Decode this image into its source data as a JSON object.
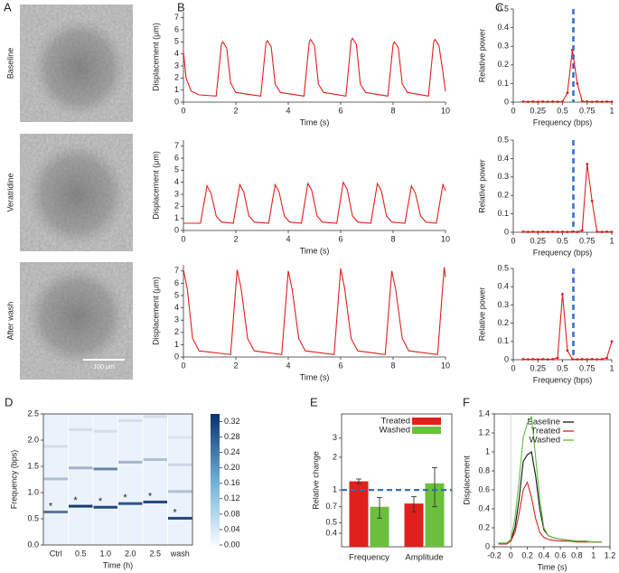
{
  "images": {
    "panel": "A",
    "labels": [
      "Baseline",
      "Veratridine",
      "After wash"
    ],
    "scale_bar": "100 μm"
  },
  "chart_data": [
    {
      "type": "line",
      "panel": "B",
      "xlabel": "Time (s)",
      "ylabel": "Displacement (μm)",
      "color": "#e0201c",
      "x": [
        0,
        0.1,
        0.3,
        0.6,
        1.25,
        1.45,
        1.5,
        1.65,
        1.8,
        2.0,
        2.95,
        3.15,
        3.2,
        3.35,
        3.5,
        3.7,
        4.6,
        4.8,
        4.85,
        5.0,
        5.15,
        5.35,
        6.2,
        6.4,
        6.45,
        6.6,
        6.75,
        6.95,
        7.8,
        8.0,
        8.05,
        8.2,
        8.35,
        8.55,
        9.35,
        9.55,
        9.6,
        9.75,
        9.9,
        10
      ],
      "values": [
        4.2,
        2.0,
        0.9,
        0.6,
        0.5,
        4.8,
        5.0,
        4.5,
        1.6,
        0.8,
        0.5,
        4.9,
        5.1,
        4.6,
        1.5,
        0.8,
        0.5,
        5.0,
        5.2,
        4.7,
        1.5,
        0.8,
        0.5,
        5.1,
        5.3,
        4.8,
        1.5,
        0.8,
        0.5,
        4.8,
        5.0,
        4.5,
        1.5,
        0.8,
        0.5,
        5.0,
        5.2,
        4.7,
        2.5,
        0.9
      ],
      "xlim": [
        0,
        10
      ],
      "xticks": [
        0,
        2,
        4,
        6,
        8,
        10
      ],
      "ylim": [
        0,
        7.5
      ],
      "yticks": [
        0,
        1,
        2,
        3,
        4,
        5,
        6,
        7
      ]
    },
    {
      "type": "line",
      "xlabel": "Time (s)",
      "ylabel": "Displacement (μm)",
      "color": "#e0201c",
      "x": [
        0,
        0.65,
        0.9,
        1.05,
        1.25,
        1.45,
        1.9,
        2.15,
        2.3,
        2.5,
        2.7,
        3.25,
        3.5,
        3.65,
        3.85,
        4.05,
        4.5,
        4.75,
        4.9,
        5.1,
        5.3,
        5.85,
        6.1,
        6.25,
        6.45,
        6.65,
        7.15,
        7.4,
        7.55,
        7.75,
        7.95,
        8.45,
        8.7,
        8.85,
        9.05,
        9.25,
        9.65,
        9.9,
        10
      ],
      "values": [
        0.6,
        0.6,
        3.7,
        3.1,
        1.2,
        0.7,
        0.6,
        3.8,
        3.2,
        1.2,
        0.7,
        0.6,
        3.8,
        3.2,
        1.2,
        0.7,
        0.6,
        3.9,
        3.3,
        1.2,
        0.7,
        0.6,
        4.0,
        3.4,
        1.2,
        0.7,
        0.6,
        3.9,
        3.3,
        1.2,
        0.7,
        0.6,
        3.7,
        3.1,
        1.2,
        0.7,
        0.6,
        3.8,
        3.3
      ],
      "xlim": [
        0,
        10
      ],
      "xticks": [
        0,
        2,
        4,
        6,
        8,
        10
      ],
      "ylim": [
        0,
        7.5
      ],
      "yticks": [
        0,
        1,
        2,
        3,
        4,
        5,
        6,
        7
      ]
    },
    {
      "type": "line",
      "xlabel": "Time (s)",
      "ylabel": "Displacement  (μm)",
      "color": "#e0201c",
      "x": [
        0,
        0.15,
        0.35,
        0.6,
        1.8,
        2.05,
        2.2,
        2.45,
        2.7,
        3.75,
        4.0,
        4.15,
        4.4,
        4.65,
        5.75,
        6.0,
        6.15,
        6.4,
        6.65,
        7.7,
        7.95,
        8.1,
        8.35,
        8.6,
        9.7,
        9.95,
        10
      ],
      "values": [
        7.1,
        5.5,
        1.5,
        0.5,
        0.2,
        7.1,
        5.6,
        1.5,
        0.5,
        0.2,
        7.0,
        5.5,
        1.5,
        0.5,
        0.2,
        7.2,
        5.6,
        1.5,
        0.5,
        0.2,
        7.0,
        5.5,
        1.5,
        0.5,
        0.2,
        7.3,
        6.5
      ],
      "xlim": [
        0,
        10
      ],
      "xticks": [
        0,
        2,
        4,
        6,
        8,
        10
      ],
      "ylim": [
        0,
        7.5
      ],
      "yticks": [
        0,
        1,
        2,
        3,
        4,
        5,
        6,
        7
      ]
    },
    {
      "type": "line",
      "panel": "C",
      "markers": true,
      "xlabel": "Frequency (bps)",
      "ylabel": "Relative power",
      "color": "#e0201c",
      "vline": 0.61,
      "vline_color": "#2f6fc4",
      "x": [
        0.1,
        0.15,
        0.2,
        0.25,
        0.3,
        0.35,
        0.4,
        0.45,
        0.5,
        0.55,
        0.6,
        0.65,
        0.7,
        0.75,
        0.8,
        0.85,
        0.9,
        0.95,
        1.0
      ],
      "values": [
        0.003,
        0.002,
        0.003,
        0.002,
        0.003,
        0.002,
        0.003,
        0.002,
        0.003,
        0.05,
        0.28,
        0.1,
        0.004,
        0.003,
        0.002,
        0.003,
        0.002,
        0.003,
        0.002
      ],
      "xlim": [
        0,
        1
      ],
      "xticks": [
        0,
        0.25,
        0.5,
        0.75,
        1
      ],
      "ylim": [
        0,
        0.5
      ],
      "yticks": [
        0,
        0.1,
        0.2,
        0.3,
        0.4,
        0.5
      ]
    },
    {
      "type": "line",
      "markers": true,
      "xlabel": "Frequency (bps)",
      "ylabel": "Relative power",
      "color": "#e0201c",
      "vline": 0.61,
      "vline_color": "#2f6fc4",
      "x": [
        0.1,
        0.15,
        0.2,
        0.25,
        0.3,
        0.35,
        0.4,
        0.45,
        0.5,
        0.55,
        0.6,
        0.65,
        0.7,
        0.75,
        0.8,
        0.85,
        0.9,
        0.95,
        1.0
      ],
      "values": [
        0.003,
        0.002,
        0.003,
        0.002,
        0.003,
        0.002,
        0.003,
        0.002,
        0.003,
        0.002,
        0.003,
        0.002,
        0.01,
        0.37,
        0.17,
        0.003,
        0.002,
        0.003,
        0.002
      ],
      "xlim": [
        0,
        1
      ],
      "xticks": [
        0,
        0.25,
        0.5,
        0.75,
        1
      ],
      "ylim": [
        0,
        0.5
      ],
      "yticks": [
        0,
        0.1,
        0.2,
        0.3,
        0.4,
        0.5
      ]
    },
    {
      "type": "line",
      "markers": true,
      "xlabel": "Frequency (bps)",
      "ylabel": "Relative power",
      "color": "#e0201c",
      "vline": 0.61,
      "vline_color": "#2f6fc4",
      "x": [
        0.1,
        0.15,
        0.2,
        0.25,
        0.3,
        0.35,
        0.4,
        0.45,
        0.5,
        0.55,
        0.6,
        0.65,
        0.7,
        0.75,
        0.8,
        0.85,
        0.9,
        0.95,
        1.0
      ],
      "values": [
        0.003,
        0.002,
        0.003,
        0.002,
        0.003,
        0.002,
        0.003,
        0.01,
        0.36,
        0.05,
        0.003,
        0.002,
        0.003,
        0.002,
        0.003,
        0.002,
        0.003,
        0.01,
        0.1
      ],
      "xlim": [
        0,
        1
      ],
      "xticks": [
        0,
        0.25,
        0.5,
        0.75,
        1
      ],
      "ylim": [
        0,
        0.5
      ],
      "yticks": [
        0,
        0.1,
        0.2,
        0.3,
        0.4,
        0.5
      ]
    },
    {
      "type": "heatmap",
      "panel": "D",
      "xlabel": "Time (h)",
      "ylabel": "Frequency (bps)",
      "categories": [
        "Ctrl",
        "0.5",
        "1.0",
        "2.0",
        "2.5",
        "wash"
      ],
      "columns": [
        {
          "peaks": [
            0.63,
            1.26,
            1.88
          ],
          "power": [
            0.22,
            0.1,
            0.05
          ]
        },
        {
          "peaks": [
            0.74,
            1.47,
            2.2
          ],
          "power": [
            0.32,
            0.12,
            0.05
          ]
        },
        {
          "peaks": [
            0.72,
            1.45,
            2.17
          ],
          "power": [
            0.3,
            0.2,
            0.05
          ]
        },
        {
          "peaks": [
            0.79,
            1.58,
            2.37
          ],
          "power": [
            0.28,
            0.12,
            0.05
          ]
        },
        {
          "peaks": [
            0.82,
            1.63,
            2.45
          ],
          "power": [
            0.3,
            0.1,
            0.05
          ]
        },
        {
          "peaks": [
            0.51,
            1.02,
            1.53,
            2.05
          ],
          "power": [
            0.3,
            0.1,
            0.06,
            0.04
          ]
        }
      ],
      "annotations": [
        "*",
        "*",
        "*",
        "*",
        "*",
        "*"
      ],
      "ylim": [
        0,
        2.5
      ],
      "yticks": [
        {
          "value": 0,
          "label": "0.0"
        },
        {
          "value": 0.5,
          "label": "0.5"
        },
        {
          "value": 1,
          "label": "1.0"
        },
        {
          "value": 1.5,
          "label": "1.5"
        },
        {
          "value": 2,
          "label": "2.0"
        },
        {
          "value": 2.5,
          "label": "2.5"
        }
      ],
      "color_range": [
        0,
        0.34
      ],
      "cticks": [
        {
          "value": 0,
          "label": "0.00"
        },
        {
          "value": 0.04,
          "label": "0.04"
        },
        {
          "value": 0.08,
          "label": "0.08"
        },
        {
          "value": 0.12,
          "label": "0.12"
        },
        {
          "value": 0.16,
          "label": "0.16"
        },
        {
          "value": 0.2,
          "label": "0.20"
        },
        {
          "value": 0.24,
          "label": "0.24"
        },
        {
          "value": 0.28,
          "label": "0.28"
        },
        {
          "value": 0.32,
          "label": "0.32"
        }
      ]
    },
    {
      "type": "bar",
      "panel": "E",
      "ylabel": "Relative change",
      "log_y": true,
      "legend": "upper right",
      "categories": [
        "Frequency",
        "Amplitude"
      ],
      "series": [
        {
          "name": "Treated",
          "color": "#e0201c",
          "values": [
            1.2,
            0.75
          ],
          "errors": [
            0.06,
            0.12
          ]
        },
        {
          "name": "Washed",
          "color": "#6cbf3c",
          "values": [
            0.7,
            1.15
          ],
          "errors": [
            0.15,
            0.45
          ]
        }
      ],
      "hline": 1,
      "hline_color": "#2f6fc4",
      "ylim": [
        0.3,
        5
      ],
      "yticks": [
        0.4,
        0.5,
        0.7,
        1,
        2,
        3
      ]
    },
    {
      "type": "line",
      "panel": "F",
      "xlabel": "Time (s)",
      "ylabel": "Displacement",
      "legend": "upper right",
      "x": [
        -0.15,
        -0.05,
        0,
        0.05,
        0.1,
        0.15,
        0.2,
        0.25,
        0.3,
        0.35,
        0.4,
        0.45,
        0.5,
        0.6,
        0.7,
        0.8,
        0.9,
        1.0,
        1.1
      ],
      "series": [
        {
          "name": "Baseline",
          "color": "#111111",
          "values": [
            0.03,
            0.03,
            0.06,
            0.2,
            0.5,
            0.9,
            0.97,
            1.0,
            0.75,
            0.4,
            0.18,
            0.12,
            0.1,
            0.08,
            0.07,
            0.06,
            0.06,
            0.05,
            0.05
          ]
        },
        {
          "name": "Treated",
          "color": "#e0201c",
          "values": [
            0.03,
            0.03,
            0.06,
            0.15,
            0.35,
            0.6,
            0.68,
            0.52,
            0.3,
            0.15,
            0.1,
            0.08,
            0.07,
            0.06,
            0.06,
            0.05,
            0.05,
            0.05,
            0.05
          ]
        },
        {
          "name": "Washed",
          "color": "#5cc03c",
          "values": [
            0.04,
            0.04,
            0.08,
            0.3,
            0.7,
            1.15,
            1.3,
            1.37,
            0.95,
            0.5,
            0.2,
            0.12,
            0.1,
            0.08,
            0.07,
            0.06,
            0.06,
            0.05,
            0.05
          ]
        }
      ],
      "xlim": [
        -0.2,
        1.2
      ],
      "xticks": [
        -0.2,
        0,
        0.2,
        0.4,
        0.6,
        0.8,
        1,
        1.2
      ],
      "ylim": [
        0,
        1.4
      ],
      "yticks": [
        0,
        0.2,
        0.4,
        0.6,
        0.8,
        1,
        1.2,
        1.4
      ]
    }
  ]
}
